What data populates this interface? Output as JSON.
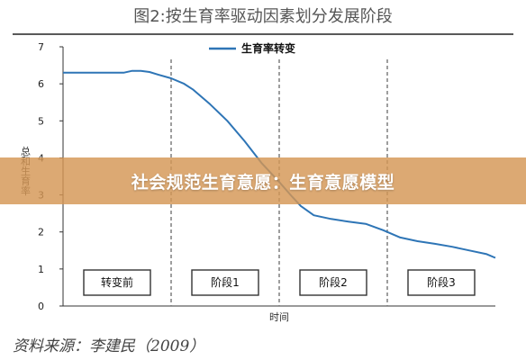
{
  "header": {
    "title": "图2:按生育率驱动因素划分发展阶段"
  },
  "banner": {
    "text": "社会规范生育意愿：生育意愿模型"
  },
  "footer": {
    "source": "资料来源：李建民（2009）"
  },
  "colors": {
    "line": "#2e75b6",
    "banner": "#d49654",
    "grid_dash": "#7f7f7f"
  },
  "chart_data": {
    "type": "line",
    "ylabel": "总和生育率",
    "xlabel": "时间",
    "ylim": [
      0,
      7
    ],
    "yticks": [
      0,
      1,
      2,
      3,
      4,
      5,
      6,
      7
    ],
    "xlim": [
      0,
      100
    ],
    "legend": {
      "position": "top-center"
    },
    "series": [
      {
        "name": "生育率转变",
        "x": [
          0,
          5,
          10,
          14,
          16,
          18,
          20,
          22,
          25,
          28,
          30,
          34,
          38,
          42,
          46,
          50,
          53,
          55,
          58,
          62,
          66,
          70,
          74,
          78,
          82,
          86,
          90,
          94,
          98,
          100
        ],
        "y": [
          6.3,
          6.3,
          6.3,
          6.3,
          6.35,
          6.35,
          6.32,
          6.25,
          6.15,
          6.0,
          5.85,
          5.45,
          5.0,
          4.45,
          3.85,
          3.35,
          2.95,
          2.7,
          2.45,
          2.35,
          2.28,
          2.22,
          2.05,
          1.85,
          1.75,
          1.68,
          1.6,
          1.5,
          1.4,
          1.3
        ]
      }
    ],
    "stage_dividers_x": [
      25,
      50,
      75
    ],
    "stages": [
      {
        "label": "转变前",
        "x": 12.5
      },
      {
        "label": "阶段1",
        "x": 37.5
      },
      {
        "label": "阶段2",
        "x": 62.5
      },
      {
        "label": "阶段3",
        "x": 87.5
      }
    ]
  }
}
